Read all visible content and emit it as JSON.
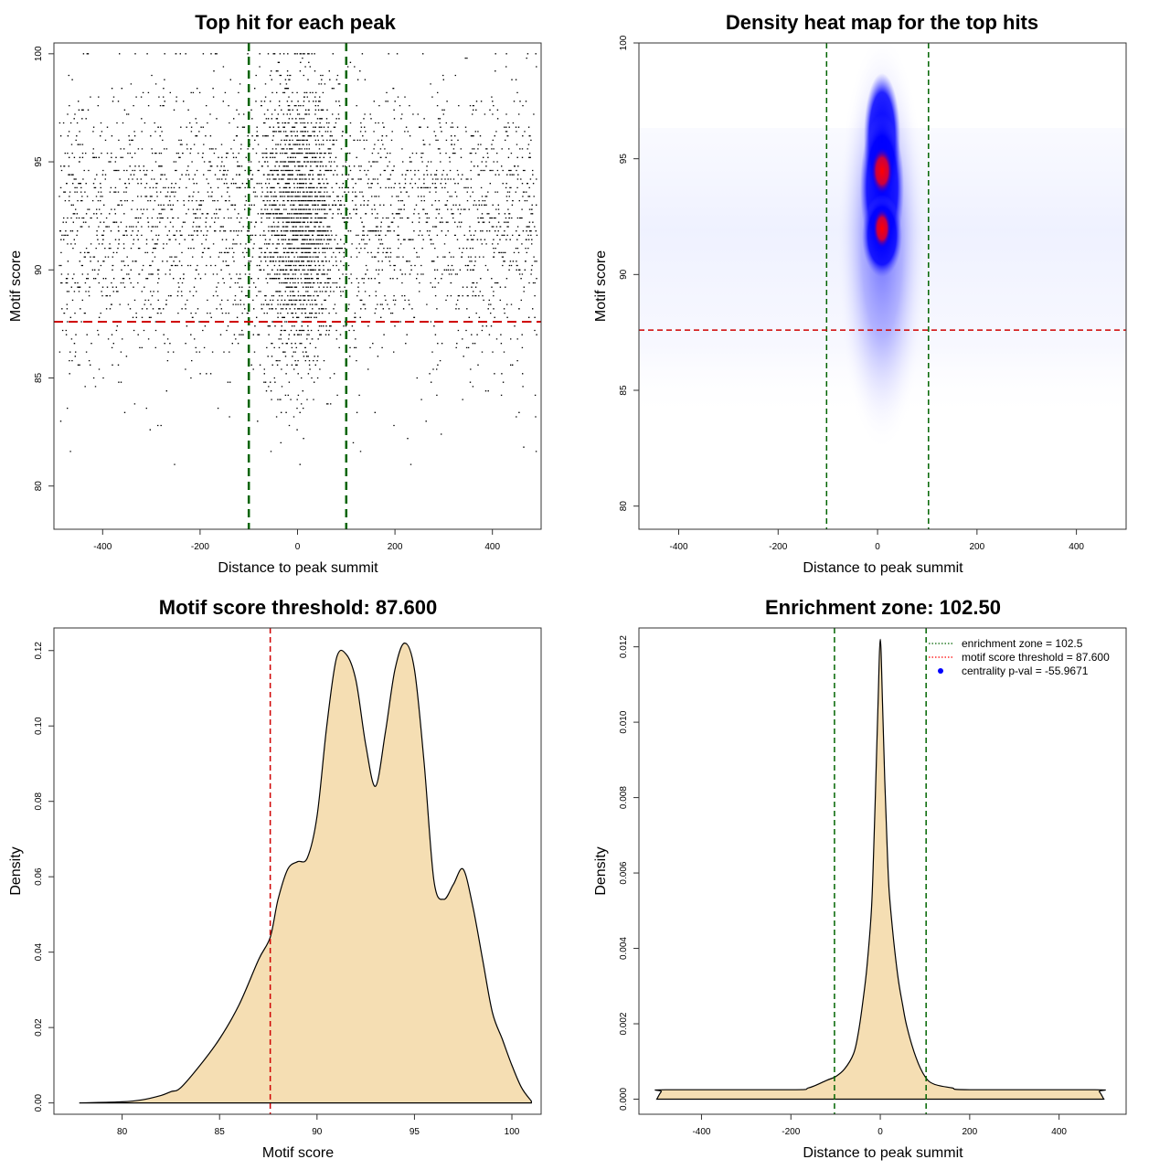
{
  "chart_data": [
    {
      "id": "p1",
      "type": "scatter",
      "title": "Top hit for each peak",
      "xlabel": "Distance to peak summit",
      "ylabel": "Motif score",
      "xlim": [
        -500,
        500
      ],
      "ylim": [
        78,
        100.5
      ],
      "xticks": [
        -400,
        -200,
        0,
        200,
        400
      ],
      "yticks": [
        80,
        85,
        90,
        95,
        100
      ],
      "vlines": [
        -100,
        100
      ],
      "hline": 87.6,
      "note": "about 15000 points; dense band centred at x = 0, background spread uniform over -500..500"
    },
    {
      "id": "p2",
      "type": "heatmap",
      "title": "Density heat map for the top hits",
      "xlabel": "Distance to peak summit",
      "ylabel": "Motif score",
      "xlim": [
        -480,
        500
      ],
      "ylim": [
        79,
        100
      ],
      "xticks": [
        -400,
        -200,
        0,
        200,
        400
      ],
      "yticks": [
        80,
        85,
        90,
        95,
        100
      ],
      "vlines": [
        -102.5,
        102.5
      ],
      "hline": 87.6,
      "peak_x": 0,
      "peak_scores": [
        94.5,
        92
      ]
    },
    {
      "id": "p3",
      "type": "area",
      "title": "Motif score threshold: 87.600",
      "xlabel": "Motif score",
      "ylabel": "Density",
      "xlim": [
        76.5,
        101.5
      ],
      "ylim": [
        -0.003,
        0.126
      ],
      "xticks": [
        80,
        85,
        90,
        95,
        100
      ],
      "yticks": [
        0.0,
        0.02,
        0.04,
        0.06,
        0.08,
        0.1,
        0.12
      ],
      "ytick_labels": [
        "0.00",
        "0.02",
        "0.04",
        "0.06",
        "0.08",
        "0.10",
        "0.12"
      ],
      "vline": 87.6,
      "x": [
        77.8,
        80,
        81,
        82,
        82.5,
        83,
        84,
        85,
        86,
        87,
        87.6,
        88,
        88.5,
        89,
        89.5,
        90,
        90.5,
        91,
        91.5,
        92,
        92.5,
        93,
        93.5,
        94,
        94.5,
        95,
        95.5,
        96,
        96.5,
        97,
        97.5,
        98,
        98.5,
        99,
        99.5,
        100,
        100.5,
        101
      ],
      "y": [
        0,
        0.0003,
        0.0008,
        0.002,
        0.003,
        0.004,
        0.01,
        0.017,
        0.026,
        0.038,
        0.044,
        0.054,
        0.062,
        0.064,
        0.065,
        0.076,
        0.1,
        0.118,
        0.119,
        0.112,
        0.095,
        0.084,
        0.098,
        0.115,
        0.122,
        0.115,
        0.09,
        0.059,
        0.054,
        0.058,
        0.062,
        0.052,
        0.038,
        0.024,
        0.017,
        0.01,
        0.004,
        0.0005
      ]
    },
    {
      "id": "p4",
      "type": "area",
      "title": "Enrichment zone: 102.50",
      "xlabel": "Distance to peak summit",
      "ylabel": "Density",
      "xlim": [
        -540,
        550
      ],
      "ylim": [
        -0.0004,
        0.0125
      ],
      "xticks": [
        -400,
        -200,
        0,
        200,
        400
      ],
      "yticks": [
        0.0,
        0.002,
        0.004,
        0.006,
        0.008,
        0.01,
        0.012
      ],
      "ytick_labels": [
        "0.000",
        "0.002",
        "0.004",
        "0.006",
        "0.008",
        "0.010",
        "0.012"
      ],
      "vlines": [
        -102.5,
        102.5
      ],
      "x": [
        -500,
        -490,
        -480,
        -200,
        -160,
        -120,
        -100,
        -80,
        -60,
        -50,
        -40,
        -30,
        -20,
        -15,
        -10,
        -5,
        0,
        5,
        10,
        15,
        20,
        30,
        40,
        50,
        60,
        80,
        100,
        120,
        160,
        200,
        480,
        490,
        500
      ],
      "y": [
        0,
        0.0002,
        0.00025,
        0.00025,
        0.0003,
        0.0005,
        0.0006,
        0.0008,
        0.0012,
        0.0017,
        0.0025,
        0.0035,
        0.005,
        0.0065,
        0.0085,
        0.0105,
        0.0122,
        0.0105,
        0.0085,
        0.0068,
        0.0055,
        0.0042,
        0.0032,
        0.0025,
        0.0019,
        0.0011,
        0.0006,
        0.0004,
        0.0003,
        0.00025,
        0.00025,
        0.0002,
        0
      ],
      "legend": [
        {
          "label": "enrichment zone = 102.5",
          "color": "#006400",
          "style": "dotted"
        },
        {
          "label": "motif score threshold = 87.600",
          "color": "#ff0000",
          "style": "dotted"
        },
        {
          "label": "centrality p-val = -55.9671",
          "color": "#0000ff",
          "style": "point"
        }
      ]
    }
  ],
  "colors": {
    "fill": "#f5deb3",
    "green": "#006400",
    "red": "#d00000",
    "blue": "#0000ff",
    "heat_red": "#ff0000"
  }
}
